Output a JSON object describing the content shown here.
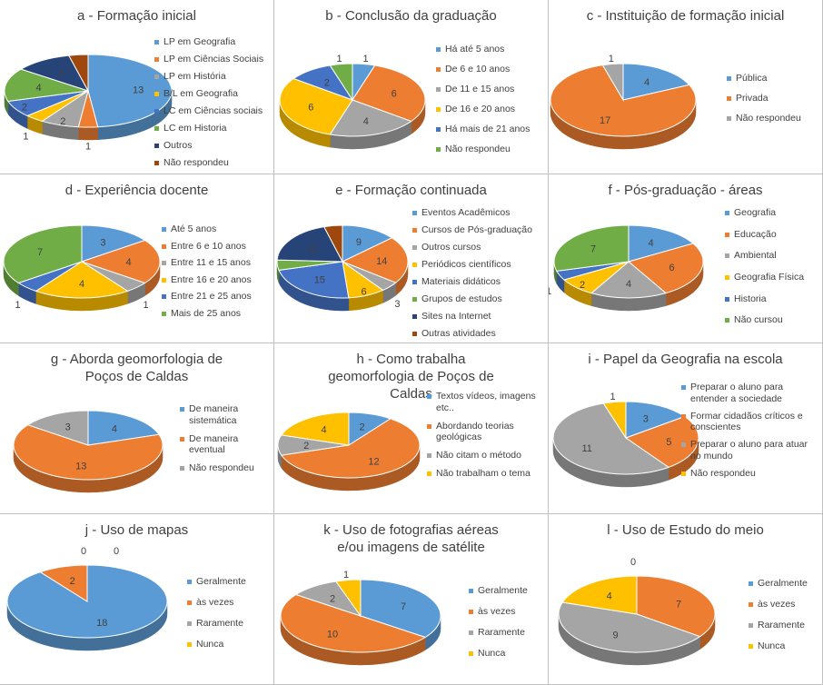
{
  "palette": [
    "#5b9bd5",
    "#ed7d31",
    "#a5a5a5",
    "#ffc000",
    "#4472c4",
    "#70ad47",
    "#264478",
    "#9e480e"
  ],
  "chart_data": [
    {
      "type": "pie",
      "title": "a - Formação inicial",
      "categories": [
        "LP em Geografia",
        "LP em Ciências Sociais",
        "LP em História",
        "B/L em Geografia",
        "LC em Ciências sociais",
        "LC em Historia",
        "Outros",
        "Não respondeu"
      ],
      "values": [
        13,
        1,
        2,
        1,
        2,
        4,
        3,
        1
      ],
      "value_labels": [
        "13",
        "1",
        "2",
        "1",
        "2",
        "4",
        "3",
        ""
      ],
      "colors": [
        "#5b9bd5",
        "#ed7d31",
        "#a5a5a5",
        "#ffc000",
        "#4472c4",
        "#70ad47",
        "#264478",
        "#9e480e"
      ],
      "legend": "right"
    },
    {
      "type": "pie",
      "title": "b - Conclusão da graduação",
      "categories": [
        "Há até 5 anos",
        "De 6 e 10 anos",
        "De 11 e 15 anos",
        "De 16 e 20 anos",
        "Há mais de 21 anos",
        "Não respondeu"
      ],
      "values": [
        1,
        6,
        4,
        6,
        2,
        1
      ],
      "value_labels": [
        "1",
        "6",
        "4",
        "6",
        "2",
        "1"
      ],
      "colors": [
        "#5b9bd5",
        "#ed7d31",
        "#a5a5a5",
        "#ffc000",
        "#4472c4",
        "#70ad47"
      ],
      "legend": "right"
    },
    {
      "type": "pie",
      "title": "c - Instituição de formação inicial",
      "categories": [
        "Pública",
        "Privada",
        "Não respondeu"
      ],
      "values": [
        4,
        17,
        1
      ],
      "value_labels": [
        "4",
        "17",
        "1"
      ],
      "colors": [
        "#5b9bd5",
        "#ed7d31",
        "#a5a5a5"
      ],
      "legend": "right"
    },
    {
      "type": "pie",
      "title": "d - Experiência docente",
      "categories": [
        "Até 5 anos",
        "Entre 6 e 10 anos",
        "Entre 11 e 15 anos",
        "Entre 16 e 20 anos",
        "Entre 21 e 25 anos",
        "Mais de 25 anos"
      ],
      "values": [
        3,
        4,
        1,
        4,
        1,
        7
      ],
      "value_labels": [
        "3",
        "4",
        "1",
        "4",
        "1",
        "7"
      ],
      "colors": [
        "#5b9bd5",
        "#ed7d31",
        "#a5a5a5",
        "#ffc000",
        "#4472c4",
        "#70ad47"
      ],
      "legend": "right"
    },
    {
      "type": "pie",
      "title": "e - Formação continuada",
      "categories": [
        "Eventos Acadêmicos",
        "Cursos de Pós-graduação",
        "Outros cursos",
        "Periódicos científicos",
        "Materiais didáticos",
        "Grupos de estudos",
        "Sites na Internet",
        "Outras atividades"
      ],
      "values": [
        9,
        14,
        3,
        6,
        15,
        3,
        13,
        3
      ],
      "value_labels": [
        "9",
        "14",
        "3",
        "6",
        "15",
        "3",
        "13",
        ""
      ],
      "colors": [
        "#5b9bd5",
        "#ed7d31",
        "#a5a5a5",
        "#ffc000",
        "#4472c4",
        "#70ad47",
        "#264478",
        "#9e480e"
      ],
      "legend": "right"
    },
    {
      "type": "pie",
      "title": "f - Pós-graduação - áreas",
      "categories": [
        "Geografia",
        "Educação",
        "Ambiental",
        "Geografia Física",
        "Historia",
        "Não cursou"
      ],
      "values": [
        4,
        6,
        4,
        2,
        1,
        7
      ],
      "value_labels": [
        "4",
        "6",
        "4",
        "2",
        "1",
        "7"
      ],
      "colors": [
        "#5b9bd5",
        "#ed7d31",
        "#a5a5a5",
        "#ffc000",
        "#4472c4",
        "#70ad47"
      ],
      "legend": "right"
    },
    {
      "type": "pie",
      "title": "g - Aborda geomorfologia de Poços de Caldas",
      "categories": [
        "De maneira sistemática",
        "De maneira eventual",
        "Não respondeu"
      ],
      "values": [
        4,
        13,
        3
      ],
      "value_labels": [
        "4",
        "13",
        "3"
      ],
      "colors": [
        "#5b9bd5",
        "#ed7d31",
        "#a5a5a5"
      ],
      "legend": "right"
    },
    {
      "type": "pie",
      "title": "h - Como trabalha geomorfologia de Poços de Caldas",
      "categories": [
        "Textos vídeos, imagens etc..",
        "Abordando teorias geológicas",
        "Não citam o método",
        "Não trabalham o tema"
      ],
      "values": [
        2,
        12,
        2,
        4
      ],
      "value_labels": [
        "2",
        "12",
        "2",
        "4"
      ],
      "colors": [
        "#5b9bd5",
        "#ed7d31",
        "#a5a5a5",
        "#ffc000"
      ],
      "legend": "right"
    },
    {
      "type": "pie",
      "title": "i - Papel da Geografia na escola",
      "categories": [
        "Preparar o aluno para entender a sociedade",
        "Formar cidadãos críticos e conscientes",
        "Preparar o aluno para atuar no mundo",
        "Não respondeu"
      ],
      "values": [
        3,
        5,
        11,
        1
      ],
      "value_labels": [
        "3",
        "5",
        "11",
        "1"
      ],
      "colors": [
        "#5b9bd5",
        "#ed7d31",
        "#a5a5a5",
        "#ffc000"
      ],
      "legend": "right"
    },
    {
      "type": "pie",
      "title": "j - Uso de mapas",
      "categories": [
        "Geralmente",
        "às vezes",
        "Raramente",
        "Nunca"
      ],
      "values": [
        18,
        2,
        0,
        0
      ],
      "value_labels": [
        "18",
        "2",
        "0",
        "0"
      ],
      "colors": [
        "#5b9bd5",
        "#ed7d31",
        "#a5a5a5",
        "#ffc000"
      ],
      "legend": "right"
    },
    {
      "type": "pie",
      "title": "k - Uso de fotografias aéreas e/ou imagens de satélite",
      "categories": [
        "Geralmente",
        "às vezes",
        "Raramente",
        "Nunca"
      ],
      "values": [
        7,
        10,
        2,
        1
      ],
      "value_labels": [
        "7",
        "10",
        "2",
        "1"
      ],
      "colors": [
        "#5b9bd5",
        "#ed7d31",
        "#a5a5a5",
        "#ffc000"
      ],
      "legend": "right"
    },
    {
      "type": "pie",
      "title": "l - Uso de Estudo do meio",
      "categories": [
        "Geralmente",
        "às vezes",
        "Raramente",
        "Nunca"
      ],
      "values": [
        0,
        7,
        9,
        4
      ],
      "value_labels": [
        "0",
        "7",
        "9",
        "4"
      ],
      "colors": [
        "#5b9bd5",
        "#ed7d31",
        "#a5a5a5",
        "#ffc000"
      ],
      "legend": "right"
    }
  ]
}
